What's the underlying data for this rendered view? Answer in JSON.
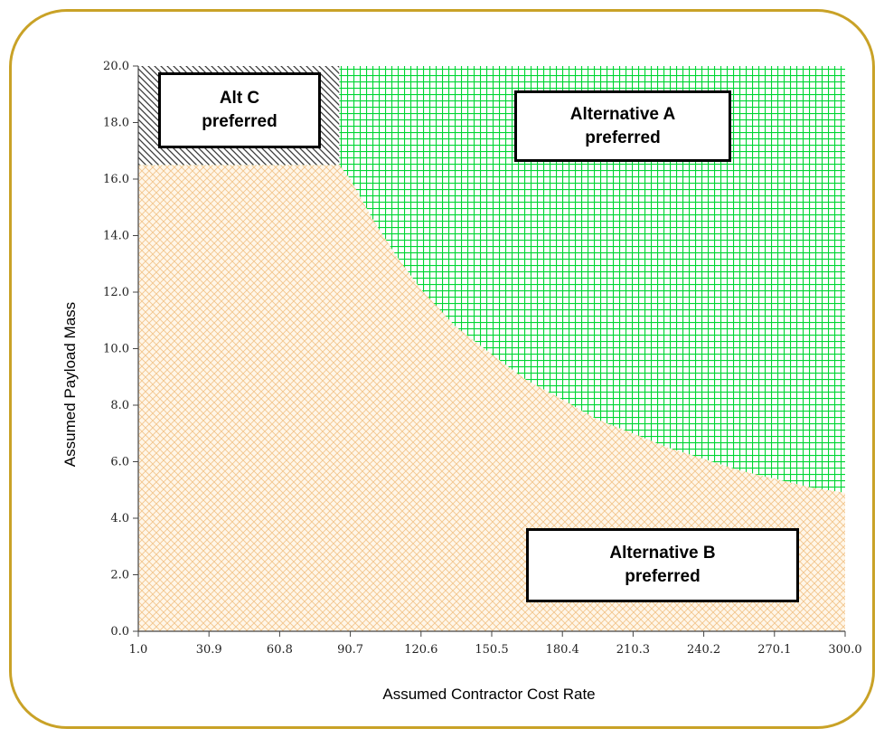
{
  "chart_data": {
    "type": "area",
    "title": "",
    "xlabel": "Assumed Contractor Cost Rate",
    "ylabel": "Assumed Payload Mass",
    "xlim": [
      1.0,
      300.0
    ],
    "ylim": [
      0.0,
      20.0
    ],
    "x_ticks": [
      "1.0",
      "30.9",
      "60.8",
      "90.7",
      "120.6",
      "150.5",
      "180.4",
      "210.3",
      "240.2",
      "270.1",
      "300.0"
    ],
    "y_ticks": [
      "0.0",
      "2.0",
      "4.0",
      "6.0",
      "8.0",
      "10.0",
      "12.0",
      "14.0",
      "16.0",
      "18.0",
      "20.0"
    ],
    "grid": false,
    "series": [
      {
        "name": "Alternative B",
        "role": "lower region",
        "pattern": "diagonal crosshatch",
        "color": "#f5c98a",
        "boundary": {
          "x": [
            1.0,
            86.0,
            90.7,
            100,
            110,
            120.6,
            135,
            150.5,
            165,
            180.4,
            195,
            210.3,
            225,
            240.2,
            255,
            270.1,
            285,
            300.0
          ],
          "y": [
            16.5,
            16.5,
            16.0,
            14.6,
            13.3,
            12.1,
            10.8,
            9.8,
            8.9,
            8.2,
            7.5,
            7.0,
            6.5,
            6.1,
            5.7,
            5.4,
            5.1,
            4.9
          ]
        }
      },
      {
        "name": "Alternative A",
        "role": "upper-right region",
        "pattern": "square grid",
        "color": "#00cc33"
      },
      {
        "name": "Alt C",
        "role": "upper-left region",
        "pattern": "diagonal hatch",
        "color": "#404040",
        "x_range": [
          1.0,
          86.0
        ],
        "y_range": [
          16.5,
          20.0
        ]
      }
    ],
    "annotations": [
      {
        "id": "alt_c",
        "lines": [
          "Alt C",
          "preferred"
        ]
      },
      {
        "id": "alt_a",
        "lines": [
          "Alternative A",
          "preferred"
        ]
      },
      {
        "id": "alt_b",
        "lines": [
          "Alternative B",
          "preferred"
        ]
      }
    ],
    "colors": {
      "frame": "#c9a227",
      "axis": "#444444"
    }
  }
}
